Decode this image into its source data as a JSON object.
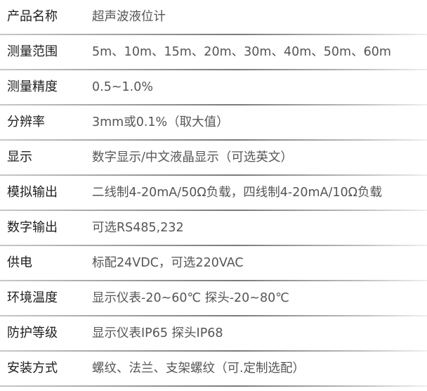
{
  "specs": [
    {
      "label": "产品名称",
      "value": "超声波液位计"
    },
    {
      "label": "测量范围",
      "value": "5m、10m、15m、20m、30m、40m、50m、60m"
    },
    {
      "label": "测量精度",
      "value": "0.5~1.0%"
    },
    {
      "label": "分辨率",
      "value": "3mm或0.1%（取大值）"
    },
    {
      "label": "显示",
      "value": "数字显示/中文液晶显示（可选英文）"
    },
    {
      "label": "模拟输出",
      "value": "二线制4-20mA/50Ω负载，四线制4-20mA/10Ω负载"
    },
    {
      "label": "数字输出",
      "value": "可选RS485,232"
    },
    {
      "label": "供电",
      "value": "标配24VDC，可选220VAC"
    },
    {
      "label": "环境温度",
      "value": "显示仪表-20~60℃ 探头-20~80℃"
    },
    {
      "label": "防护等级",
      "value": "显示仪表IP65 探头IP68"
    },
    {
      "label": "安装方式",
      "value": "螺纹、法兰、支架螺纹（可.定制选配）"
    }
  ]
}
